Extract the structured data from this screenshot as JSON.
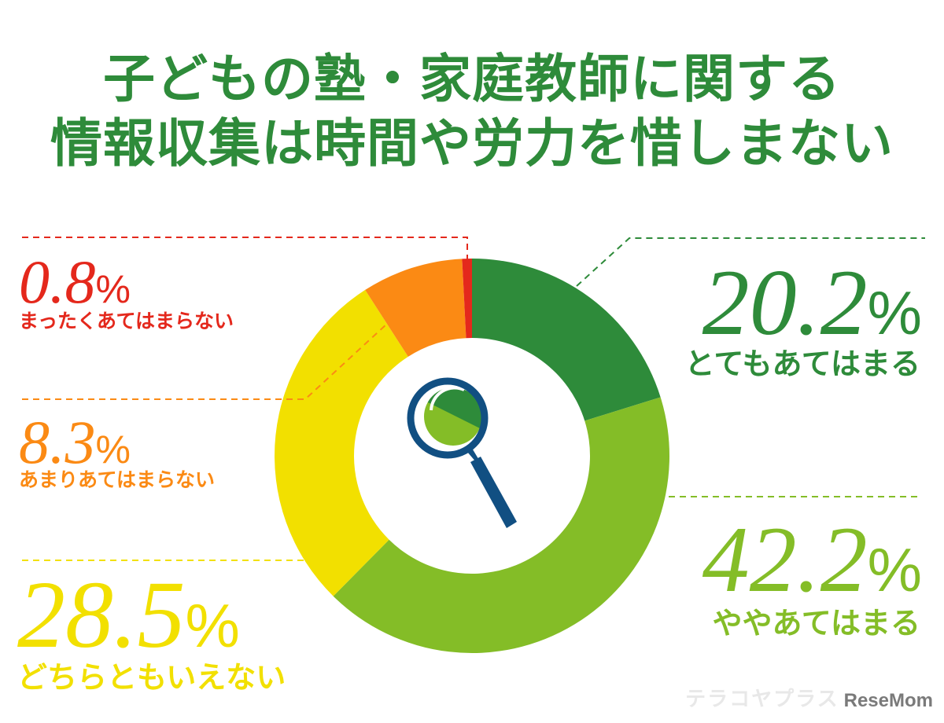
{
  "title": {
    "line1": "子どもの塾・家庭教師に関する",
    "line2": "情報収集は時間や労力を惜しまない"
  },
  "labels": {
    "strongly_agree": {
      "value": "20.2",
      "sign": "%",
      "text": "とてもあてはまる",
      "color": "#2e8b3a"
    },
    "somewhat_agree": {
      "value": "42.2",
      "sign": "%",
      "text": "ややあてはまる",
      "color": "#84bd27"
    },
    "neutral": {
      "value": "28.5",
      "sign": "%",
      "text": "どちらともいえない",
      "color": "#f2e000"
    },
    "somewhat_disagree": {
      "value": "8.3",
      "sign": "%",
      "text": "あまりあてはまらない",
      "color": "#fb8a14"
    },
    "strongly_disagree": {
      "value": "0.8",
      "sign": "%",
      "text": "まったくあてはまらない",
      "color": "#e4281c"
    }
  },
  "center_icon": "magnifying-glass-icon",
  "watermark": {
    "partner": "テラコヤプラス",
    "brand": "ReseMom"
  },
  "chart_data": {
    "type": "pie",
    "subtype": "donut",
    "title": "子どもの塾・家庭教師に関する情報収集は時間や労力を惜しまない",
    "categories": [
      "とてもあてはまる",
      "ややあてはまる",
      "どちらともいえない",
      "あまりあてはまらない",
      "まったくあてはまらない"
    ],
    "values": [
      20.2,
      42.2,
      28.5,
      8.3,
      0.8
    ],
    "unit": "%",
    "colors": [
      "#2e8b3a",
      "#84bd27",
      "#f2e000",
      "#fb8a14",
      "#e4281c"
    ],
    "start_angle": "12 o'clock, clockwise",
    "legend": "none (direct labels with dashed leader lines)",
    "center": [
      600,
      580
    ],
    "outer_radius": 251,
    "inner_radius": 150
  }
}
